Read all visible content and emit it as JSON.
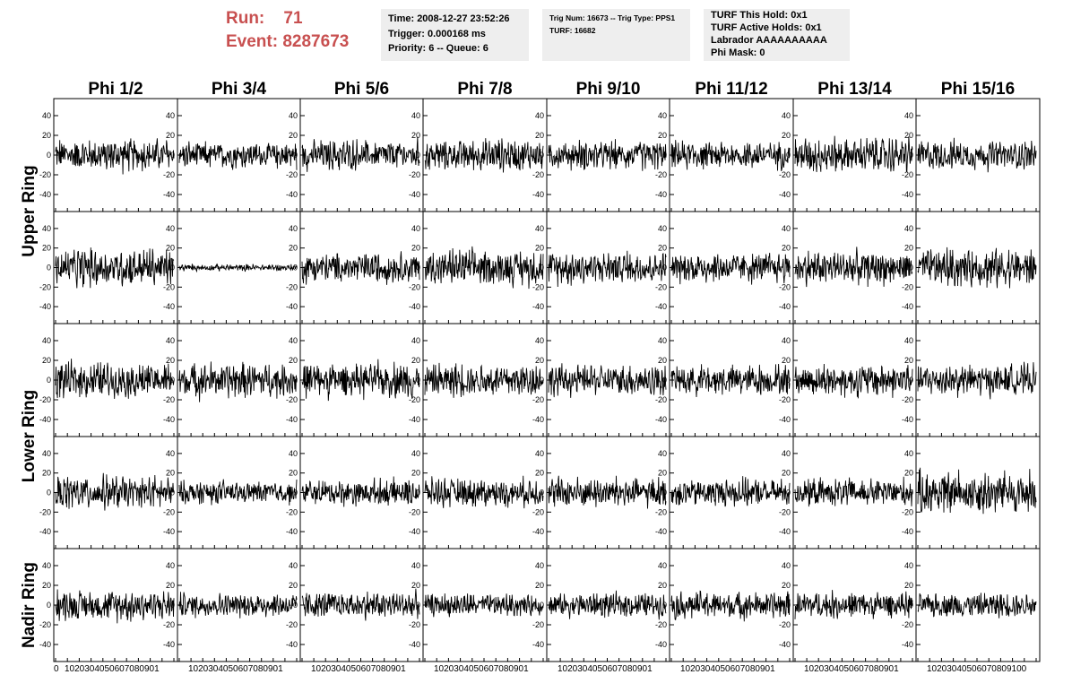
{
  "header": {
    "run_label": "Run:",
    "run_value": "71",
    "event_label": "Event:",
    "event_value": "8287673"
  },
  "info_time": [
    "Time: 2008-12-27 23:52:26",
    "Trigger: 0.000168 ms",
    "Priority: 6 -- Queue: 6"
  ],
  "info_trig": [
    "Trig Num: 16673 -- Trig Type: PPS1",
    "",
    "TURF: 16682"
  ],
  "info_turf": [
    "TURF This Hold: 0x1",
    "TURF Active Holds: 0x1",
    "Labrador AAAAAAAAAA",
    "Phi Mask: 0"
  ],
  "chart_data": {
    "type": "line",
    "columns": [
      "Phi 1/2",
      "Phi 3/4",
      "Phi 5/6",
      "Phi 7/8",
      "Phi 9/10",
      "Phi 11/12",
      "Phi 13/14",
      "Phi 15/16"
    ],
    "row_labels": [
      "Upper Ring",
      "Lower Ring",
      "Nadir Ring"
    ],
    "x_range": [
      0,
      100
    ],
    "y_range": [
      -50,
      50
    ],
    "y_ticks": [
      -40,
      -20,
      0,
      20,
      40
    ],
    "x_ticks": [
      0,
      10,
      20,
      30,
      40,
      50,
      60,
      70,
      80,
      90,
      100
    ],
    "x_tick_label_strings": [
      "0",
      "1020304050607080901",
      "1020304050607080901",
      "1020304050607080901",
      "1020304050607080901",
      "1020304050607080901",
      "1020304050607080901",
      "1020304050607080901",
      "10203040506070809100"
    ],
    "samples_per_trace": 256,
    "panel_amplitudes": [
      [
        [
          15,
          8
        ],
        [
          12,
          8
        ],
        [
          14,
          9
        ],
        [
          14,
          8
        ],
        [
          13,
          8
        ],
        [
          13,
          8
        ],
        [
          16,
          9
        ],
        [
          13,
          8
        ]
      ],
      [
        [
          18,
          10
        ],
        [
          3,
          2
        ],
        [
          14,
          8
        ],
        [
          16,
          9
        ],
        [
          15,
          9
        ],
        [
          14,
          8
        ],
        [
          15,
          9
        ],
        [
          18,
          10
        ]
      ],
      [
        [
          16,
          9
        ],
        [
          16,
          9
        ],
        [
          16,
          9
        ],
        [
          15,
          8
        ],
        [
          14,
          8
        ],
        [
          14,
          8
        ],
        [
          15,
          8
        ],
        [
          14,
          8
        ]
      ],
      [
        [
          15,
          8
        ],
        [
          11,
          6
        ],
        [
          12,
          7
        ],
        [
          13,
          7
        ],
        [
          14,
          8
        ],
        [
          13,
          7
        ],
        [
          13,
          7
        ],
        [
          20,
          11
        ]
      ],
      [
        [
          14,
          8
        ],
        [
          11,
          6
        ],
        [
          12,
          7
        ],
        [
          10,
          6
        ],
        [
          11,
          6
        ],
        [
          13,
          7
        ],
        [
          12,
          7
        ],
        [
          11,
          6
        ]
      ]
    ],
    "line_color": "#000000",
    "background_color": "#ffffff"
  }
}
